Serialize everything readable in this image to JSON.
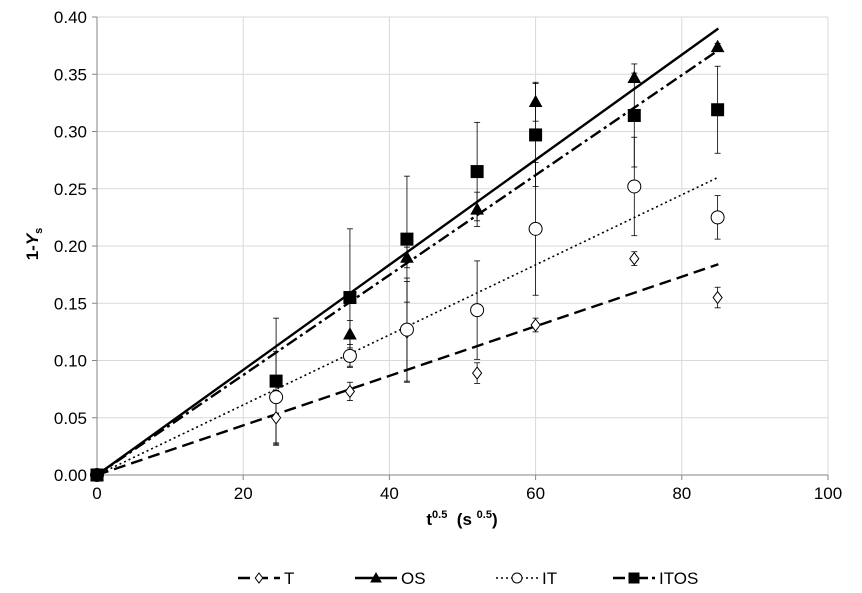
{
  "chart_data": {
    "type": "scatter",
    "title": "",
    "xlabel": {
      "base": "t",
      "sup1": "0.5",
      "mid": "  (s ",
      "sup2": "0.5",
      "end": ")"
    },
    "ylabel": {
      "base": "1-",
      "italic": "Y",
      "sub": "s"
    },
    "xlim": [
      0,
      100
    ],
    "ylim": [
      0,
      0.4
    ],
    "x_ticks": [
      0,
      20,
      40,
      60,
      80,
      100
    ],
    "x_tick_labels": [
      "0",
      "20",
      "40",
      "60",
      "80",
      "100"
    ],
    "y_ticks": [
      0,
      0.05,
      0.1,
      0.15,
      0.2,
      0.25,
      0.3,
      0.35,
      0.4
    ],
    "y_tick_labels": [
      "0.00",
      "0.05",
      "0.10",
      "0.15",
      "0.20",
      "0.25",
      "0.30",
      "0.35",
      "0.40"
    ],
    "grid": true,
    "legend": "bottom",
    "series": [
      {
        "name": "T",
        "marker": "diamond-open",
        "line": "dashed",
        "trend_slope": 0.002165,
        "points": [
          {
            "x": 0,
            "y": 0.0,
            "err": 0
          },
          {
            "x": 24.5,
            "y": 0.05,
            "err": 0.024
          },
          {
            "x": 34.6,
            "y": 0.073,
            "err": 0.008
          },
          {
            "x": 42.4,
            "y": 0.125,
            "err": 0.044
          },
          {
            "x": 52.0,
            "y": 0.089,
            "err": 0.009
          },
          {
            "x": 60.0,
            "y": 0.131,
            "err": 0.006
          },
          {
            "x": 73.5,
            "y": 0.189,
            "err": 0.006
          },
          {
            "x": 84.9,
            "y": 0.155,
            "err": 0.009
          }
        ]
      },
      {
        "name": "OS",
        "marker": "triangle-filled",
        "line": "solid",
        "trend_slope": 0.004588,
        "points": [
          {
            "x": 0,
            "y": 0.0,
            "err": 0
          },
          {
            "x": 34.6,
            "y": 0.123,
            "err": 0.012
          },
          {
            "x": 42.4,
            "y": 0.19,
            "err": 0.009
          },
          {
            "x": 52.0,
            "y": 0.232,
            "err": 0.015
          },
          {
            "x": 60.0,
            "y": 0.326,
            "err": 0.017
          },
          {
            "x": 73.5,
            "y": 0.347,
            "err": 0.004
          },
          {
            "x": 84.9,
            "y": 0.374,
            "err": 0.003
          }
        ]
      },
      {
        "name": "IT",
        "marker": "circle-open",
        "line": "dotted",
        "trend_slope": 0.003059,
        "points": [
          {
            "x": 0,
            "y": 0.0,
            "err": 0
          },
          {
            "x": 24.5,
            "y": 0.068,
            "err": 0.04
          },
          {
            "x": 34.6,
            "y": 0.104,
            "err": 0.01
          },
          {
            "x": 42.4,
            "y": 0.127,
            "err": 0.045
          },
          {
            "x": 52.0,
            "y": 0.144,
            "err": 0.043
          },
          {
            "x": 60.0,
            "y": 0.215,
            "err": 0.058
          },
          {
            "x": 73.5,
            "y": 0.252,
            "err": 0.043
          },
          {
            "x": 84.9,
            "y": 0.225,
            "err": 0.019
          }
        ]
      },
      {
        "name": "ITOS",
        "marker": "square-filled",
        "line": "dash-dot",
        "trend_slope": 0.004365,
        "points": [
          {
            "x": 0,
            "y": 0.0,
            "err": 0
          },
          {
            "x": 24.5,
            "y": 0.082,
            "err": 0.055
          },
          {
            "x": 34.6,
            "y": 0.155,
            "err": 0.06
          },
          {
            "x": 42.4,
            "y": 0.206,
            "err": 0.055
          },
          {
            "x": 52.0,
            "y": 0.265,
            "err": 0.043
          },
          {
            "x": 60.0,
            "y": 0.297,
            "err": 0.045
          },
          {
            "x": 73.5,
            "y": 0.314,
            "err": 0.045
          },
          {
            "x": 84.9,
            "y": 0.319,
            "err": 0.038
          }
        ]
      }
    ]
  }
}
